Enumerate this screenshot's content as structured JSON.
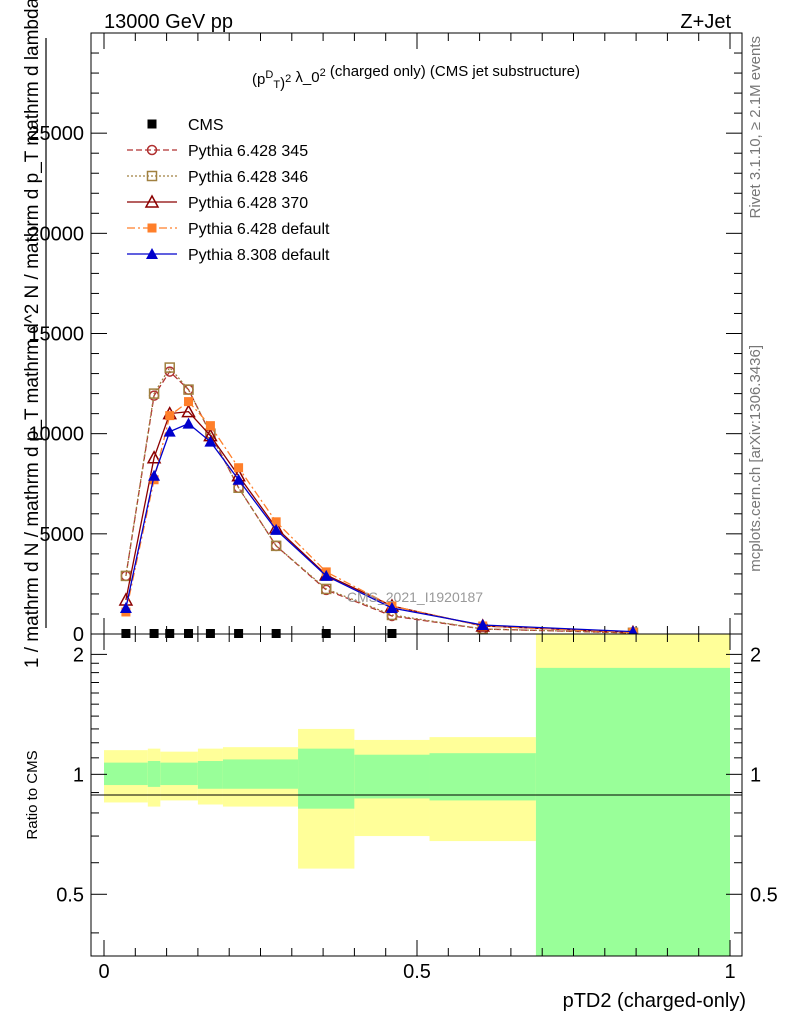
{
  "header": {
    "left": "13000 GeV pp",
    "right": "Z+Jet"
  },
  "side_labels": {
    "rivet": "Rivet 3.1.10, ≥ 2.1M events",
    "mcplots": "mcplots.cern.ch [arXiv:1306.3436]"
  },
  "watermark": "CMS_2021_I1920187",
  "colors": {
    "cms": "#000000",
    "pythia6_345": "#b03030",
    "pythia6_346": "#a08040",
    "pythia6_370": "#8b0000",
    "pythia6_default": "#ff7f2a",
    "pythia8_default": "#0000cc",
    "band_inner": "#99ff99",
    "band_outer": "#ffff99"
  },
  "chart_data": [
    {
      "type": "line",
      "title": "(p_T^D)^2 λ_0^2 (charged only) (CMS jet substructure)",
      "ylabel": "1 / mathrm d N / mathrm d p_T mathrm d^2 N / mathrm d p_T mathrm d lambda",
      "xlim": [
        0,
        1
      ],
      "ylim": [
        0,
        30000
      ],
      "y_ticks": [
        "0",
        "5000",
        "10000",
        "15000",
        "20000",
        "25000"
      ],
      "legend_position": "top-left",
      "x": [
        0.035,
        0.08,
        0.105,
        0.135,
        0.17,
        0.215,
        0.275,
        0.355,
        0.46,
        0.605,
        0.845
      ],
      "series": [
        {
          "name": "CMS",
          "marker": "filled-square",
          "values": [
            25,
            25,
            25,
            25,
            25,
            25,
            25,
            25,
            25,
            null,
            null
          ]
        },
        {
          "name": "Pythia 6.428 345",
          "marker": "open-circle",
          "dash": "dashed",
          "values": [
            2900,
            11900,
            13100,
            12200,
            10000,
            7300,
            4400,
            2200,
            900,
            250,
            50
          ]
        },
        {
          "name": "Pythia 6.428 346",
          "marker": "open-square",
          "dash": "dotted",
          "values": [
            2900,
            12000,
            13300,
            12200,
            10000,
            7300,
            4400,
            2250,
            950,
            250,
            60
          ]
        },
        {
          "name": "Pythia 6.428 370",
          "marker": "open-triangle",
          "dash": "solid",
          "values": [
            1700,
            8800,
            11000,
            11100,
            9900,
            7900,
            5300,
            2950,
            1400,
            400,
            80
          ]
        },
        {
          "name": "Pythia 6.428 default",
          "marker": "filled-square",
          "dash": "dashdot",
          "values": [
            1100,
            7700,
            10900,
            11600,
            10400,
            8300,
            5600,
            3100,
            1400,
            400,
            80
          ]
        },
        {
          "name": "Pythia 8.308 default",
          "marker": "filled-triangle",
          "dash": "solid",
          "values": [
            1300,
            7900,
            10100,
            10500,
            9600,
            7700,
            5200,
            2900,
            1300,
            450,
            120
          ]
        }
      ]
    },
    {
      "type": "area",
      "ylabel": "Ratio to CMS",
      "xlabel": "pTD2 (charged-only)",
      "xlim": [
        0,
        1
      ],
      "ylim": [
        0.35,
        2.25
      ],
      "y_scale": "log",
      "y_ticks": [
        "0.5",
        "1",
        "2"
      ],
      "x_ticks": [
        "0",
        "0.5",
        "1"
      ],
      "bins": [
        {
          "lo": 0.0,
          "hi": 0.07,
          "inner": [
            0.94,
            1.07
          ],
          "outer": [
            0.85,
            1.15
          ]
        },
        {
          "lo": 0.07,
          "hi": 0.09,
          "inner": [
            0.93,
            1.08
          ],
          "outer": [
            0.83,
            1.16
          ]
        },
        {
          "lo": 0.09,
          "hi": 0.15,
          "inner": [
            0.94,
            1.07
          ],
          "outer": [
            0.86,
            1.14
          ]
        },
        {
          "lo": 0.15,
          "hi": 0.19,
          "inner": [
            0.92,
            1.08
          ],
          "outer": [
            0.84,
            1.16
          ]
        },
        {
          "lo": 0.19,
          "hi": 0.31,
          "inner": [
            0.92,
            1.09
          ],
          "outer": [
            0.83,
            1.17
          ]
        },
        {
          "lo": 0.31,
          "hi": 0.4,
          "inner": [
            0.82,
            1.16
          ],
          "outer": [
            0.58,
            1.3
          ]
        },
        {
          "lo": 0.4,
          "hi": 0.52,
          "inner": [
            0.87,
            1.12
          ],
          "outer": [
            0.7,
            1.22
          ]
        },
        {
          "lo": 0.52,
          "hi": 0.69,
          "inner": [
            0.86,
            1.13
          ],
          "outer": [
            0.68,
            1.24
          ]
        },
        {
          "lo": 0.69,
          "hi": 1.0,
          "inner": [
            0.35,
            1.85
          ],
          "outer": [
            0.35,
            2.25
          ]
        }
      ]
    }
  ]
}
